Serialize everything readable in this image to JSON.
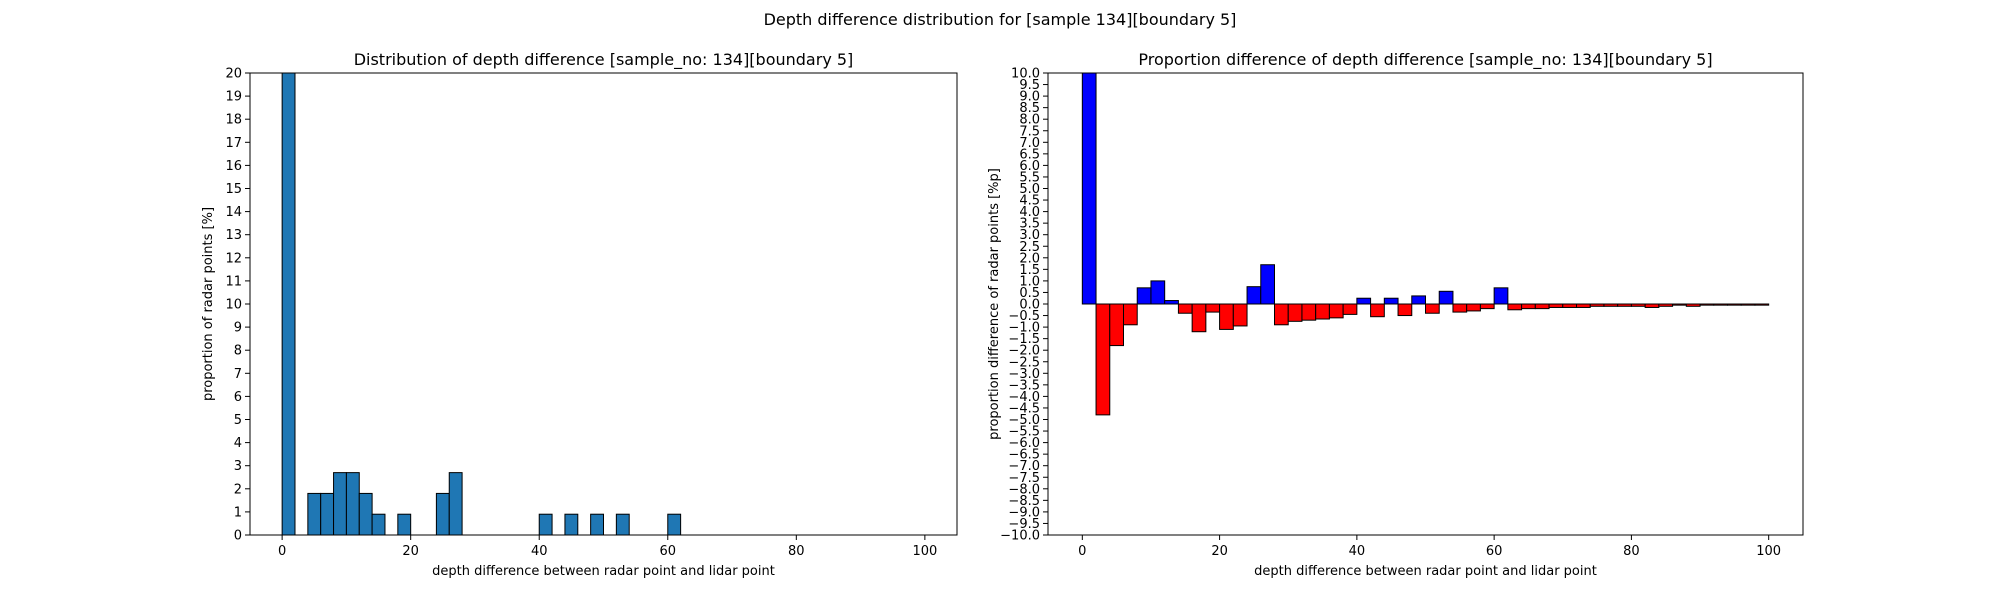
{
  "figure": {
    "suptitle": "Depth difference distribution for [sample 134][boundary 5]"
  },
  "chart_data": [
    {
      "type": "bar",
      "title": "Distribution of depth difference [sample_no: 134][boundary 5]",
      "xlabel": "depth difference between radar point and lidar point",
      "ylabel": "proportion of radar points [%]",
      "xlim": [
        -5,
        105
      ],
      "ylim": [
        0,
        20
      ],
      "xticks": [
        "0",
        "20",
        "40",
        "60",
        "80",
        "100"
      ],
      "yticks": [
        "0",
        "1",
        "2",
        "3",
        "4",
        "5",
        "6",
        "7",
        "8",
        "9",
        "10",
        "11",
        "12",
        "13",
        "14",
        "15",
        "16",
        "17",
        "18",
        "19",
        "20"
      ],
      "bin_width": 2,
      "x": [
        0,
        4,
        6,
        8,
        10,
        12,
        14,
        18,
        24,
        26,
        40,
        44,
        48,
        52,
        60
      ],
      "values": [
        20,
        1.8,
        1.8,
        2.7,
        2.7,
        1.8,
        0.9,
        0.9,
        1.8,
        2.7,
        0.9,
        0.9,
        0.9,
        0.9,
        0.9
      ],
      "colors": {
        "bar": "#1f77b4",
        "edge": "#000000"
      }
    },
    {
      "type": "bar",
      "title": "Proportion difference of depth difference [sample_no: 134][boundary 5]",
      "xlabel": "depth difference between radar point and lidar point",
      "ylabel": "proportion difference of radar points [%p]",
      "xlim": [
        -5,
        105
      ],
      "ylim": [
        -10,
        10
      ],
      "xticks": [
        "0",
        "20",
        "40",
        "60",
        "80",
        "100"
      ],
      "yticks": [
        "10.0",
        "9.5",
        "9.0",
        "8.5",
        "8.0",
        "7.5",
        "7.0",
        "6.5",
        "6.0",
        "5.5",
        "5.0",
        "4.5",
        "4.0",
        "3.5",
        "3.0",
        "2.5",
        "2.0",
        "1.5",
        "1.0",
        "0.5",
        "0.0",
        "-0.5",
        "-1.0",
        "-1.5",
        "-2.0",
        "-2.5",
        "-3.0",
        "-3.5",
        "-4.0",
        "-4.5",
        "-5.0",
        "-5.5",
        "-6.0",
        "-6.5",
        "-7.0",
        "-7.5",
        "-8.0",
        "-8.5",
        "-9.0",
        "-9.5",
        "-10.0"
      ],
      "bin_width": 2,
      "x": [
        0,
        2,
        4,
        6,
        8,
        10,
        12,
        14,
        16,
        18,
        20,
        22,
        24,
        26,
        28,
        30,
        32,
        34,
        36,
        38,
        40,
        42,
        44,
        46,
        48,
        50,
        52,
        54,
        56,
        58,
        60,
        62,
        64,
        66,
        68,
        70,
        72,
        74,
        76,
        78,
        80,
        82,
        84,
        86,
        88,
        90,
        92,
        94,
        96,
        98
      ],
      "values": [
        10.0,
        -4.8,
        -1.8,
        -0.9,
        0.7,
        1.0,
        0.15,
        -0.4,
        -1.2,
        -0.35,
        -1.1,
        -0.95,
        0.75,
        1.7,
        -0.9,
        -0.75,
        -0.7,
        -0.65,
        -0.6,
        -0.45,
        0.25,
        -0.55,
        0.25,
        -0.5,
        0.35,
        -0.4,
        0.55,
        -0.35,
        -0.3,
        -0.2,
        0.7,
        -0.25,
        -0.2,
        -0.2,
        -0.15,
        -0.15,
        -0.15,
        -0.1,
        -0.1,
        -0.1,
        -0.1,
        -0.15,
        -0.1,
        -0.05,
        -0.1,
        -0.05,
        -0.05,
        -0.05,
        -0.05,
        -0.05
      ],
      "colors": {
        "positive": "#0000ff",
        "negative": "#ff0000",
        "edge": "#000000"
      }
    }
  ]
}
